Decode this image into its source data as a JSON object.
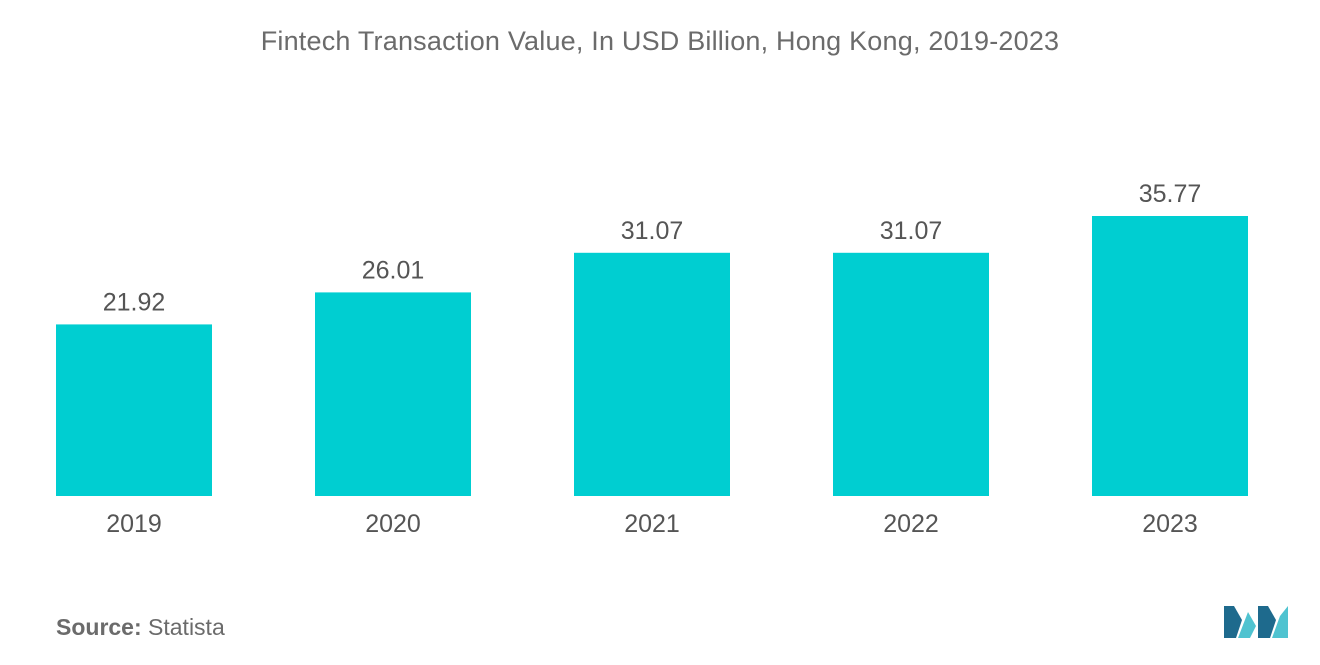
{
  "colors": {
    "bar": "#00ced1",
    "text": "#555555",
    "muted": "#6b6b6b",
    "logo_dark": "#1e6a8d",
    "logo_light": "#4fc3d0"
  },
  "chart_data": {
    "type": "bar",
    "title": "Fintech Transaction Value, In USD Billion, Hong Kong, 2019-2023",
    "categories": [
      "2019",
      "2020",
      "2021",
      "2022",
      "2023"
    ],
    "values": [
      21.92,
      26.01,
      31.07,
      31.07,
      35.77
    ],
    "value_labels": [
      "21.92",
      "26.01",
      "31.07",
      "31.07",
      "35.77"
    ],
    "xlabel": "",
    "ylabel": "",
    "ylim": [
      0,
      35.77
    ],
    "grid": false,
    "legend": "none"
  },
  "source": {
    "label": "Source:",
    "value": "Statista"
  },
  "logo": {
    "icon": "mordor-intelligence-logo"
  }
}
